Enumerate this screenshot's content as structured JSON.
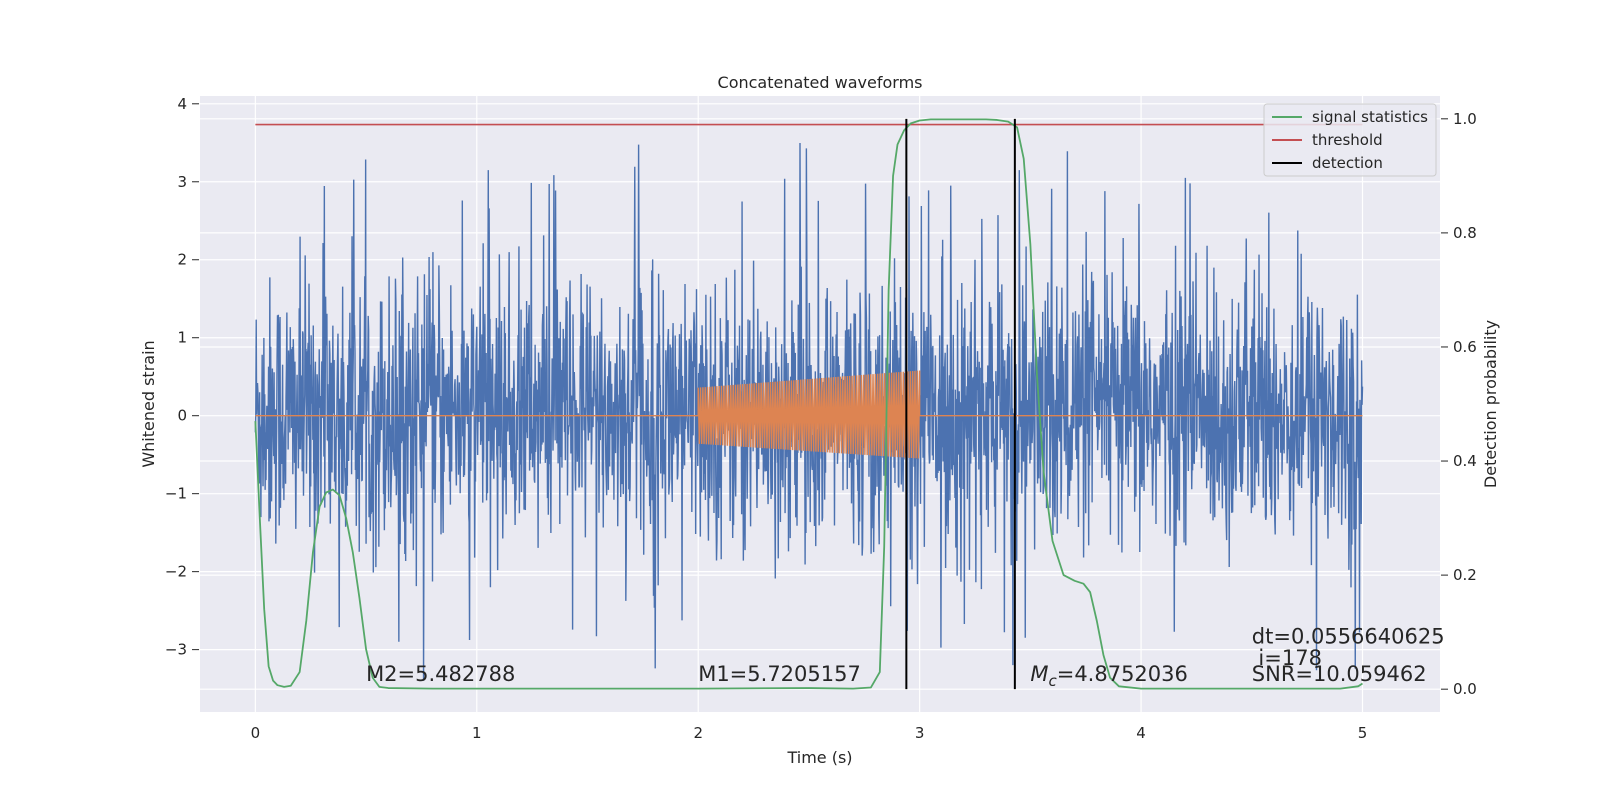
{
  "chart_data": {
    "type": "line",
    "title": "Concatenated waveforms",
    "xlabel": "Time (s)",
    "ylabel_left": "Whitened strain",
    "ylabel_right": "Detection probability",
    "xlim": [
      -0.25,
      5.35
    ],
    "ylim_left": [
      -3.8,
      4.1
    ],
    "ylim_right": [
      -0.04,
      1.04
    ],
    "grid": true,
    "legend_placement": "top-right",
    "x_ticks": [
      0,
      1,
      2,
      3,
      4,
      5
    ],
    "x_tick_labels": [
      "0",
      "1",
      "2",
      "3",
      "4",
      "5"
    ],
    "y_left_ticks": [
      -3,
      -2,
      -1,
      0,
      1,
      2,
      3,
      4
    ],
    "y_left_tick_labels": [
      "−3",
      "−2",
      "−1",
      "0",
      "1",
      "2",
      "3",
      "4"
    ],
    "y_right_ticks": [
      0.0,
      0.2,
      0.4,
      0.6,
      0.8,
      1.0
    ],
    "y_right_tick_labels": [
      "0.0",
      "0.2",
      "0.4",
      "0.6",
      "0.8",
      "1.0"
    ],
    "series": [
      {
        "name": "",
        "axis": "left",
        "color": "#4c72b0",
        "description_kind": "noise",
        "x_range": [
          0,
          5
        ],
        "typical_envelope": [
          -2.0,
          2.5
        ],
        "extreme_range": [
          -3.4,
          3.75
        ]
      },
      {
        "name": "",
        "axis": "left",
        "color": "#dd8452",
        "x_range": [
          0,
          5
        ],
        "baseline": 0,
        "chirp_x_range": [
          2.0,
          3.0
        ],
        "chirp_amplitude_start": [
          -0.36,
          0.36
        ],
        "chirp_amplitude_end": [
          -0.55,
          0.58
        ]
      },
      {
        "name": "signal statistics",
        "axis": "right",
        "color": "#55a868",
        "x": [
          0,
          0.02,
          0.04,
          0.06,
          0.08,
          0.1,
          0.13,
          0.16,
          0.2,
          0.23,
          0.26,
          0.29,
          0.32,
          0.35,
          0.38,
          0.41,
          0.44,
          0.47,
          0.5,
          0.53,
          0.56,
          0.6,
          0.8,
          1.0,
          1.5,
          2.0,
          2.5,
          2.7,
          2.78,
          2.82,
          2.84,
          2.86,
          2.88,
          2.9,
          2.93,
          2.96,
          3.0,
          3.05,
          3.2,
          3.3,
          3.35,
          3.4,
          3.44,
          3.47,
          3.5,
          3.53,
          3.56,
          3.6,
          3.65,
          3.7,
          3.74,
          3.77,
          3.8,
          3.83,
          3.86,
          3.9,
          4.0,
          4.5,
          4.9,
          4.98,
          5.0
        ],
        "values": [
          0.47,
          0.3,
          0.14,
          0.04,
          0.015,
          0.007,
          0.004,
          0.006,
          0.03,
          0.12,
          0.24,
          0.32,
          0.345,
          0.35,
          0.34,
          0.3,
          0.24,
          0.16,
          0.07,
          0.02,
          0.004,
          0.002,
          0.001,
          0.001,
          0.001,
          0.001,
          0.002,
          0.001,
          0.003,
          0.03,
          0.25,
          0.7,
          0.9,
          0.955,
          0.98,
          0.992,
          0.997,
          0.999,
          0.999,
          0.999,
          0.998,
          0.995,
          0.985,
          0.93,
          0.78,
          0.55,
          0.38,
          0.26,
          0.2,
          0.19,
          0.185,
          0.17,
          0.12,
          0.06,
          0.02,
          0.005,
          0.001,
          0.001,
          0.001,
          0.005,
          0.01
        ]
      },
      {
        "name": "threshold",
        "axis": "right",
        "color": "#c44e52",
        "x": [
          0,
          5
        ],
        "values": [
          0.99,
          0.99
        ]
      },
      {
        "name": "detection",
        "axis": "right",
        "color": "#000000",
        "vlines_x": [
          2.94,
          3.43
        ],
        "vline_range": [
          0.0,
          1.0
        ]
      }
    ],
    "annotations": [
      {
        "text": "M2=5.482788",
        "x": 0.5,
        "y": -3.4
      },
      {
        "text": "M1=5.7205157",
        "x": 2.0,
        "y": -3.4
      },
      {
        "text": "=4.8752036",
        "math_prefix": "M",
        "math_subscript": "c",
        "x": 3.5,
        "y": -3.4
      },
      {
        "text": "dt=0.0556640625",
        "x": 4.5,
        "y": -2.92
      },
      {
        "text": "i=178",
        "x": 4.53,
        "y": -3.2
      },
      {
        "text": "SNR=10.059462",
        "x": 4.5,
        "y": -3.4
      }
    ]
  },
  "colors": {
    "plot_background": "#eaeaf2",
    "grid": "#ffffff",
    "text": "#262626"
  }
}
